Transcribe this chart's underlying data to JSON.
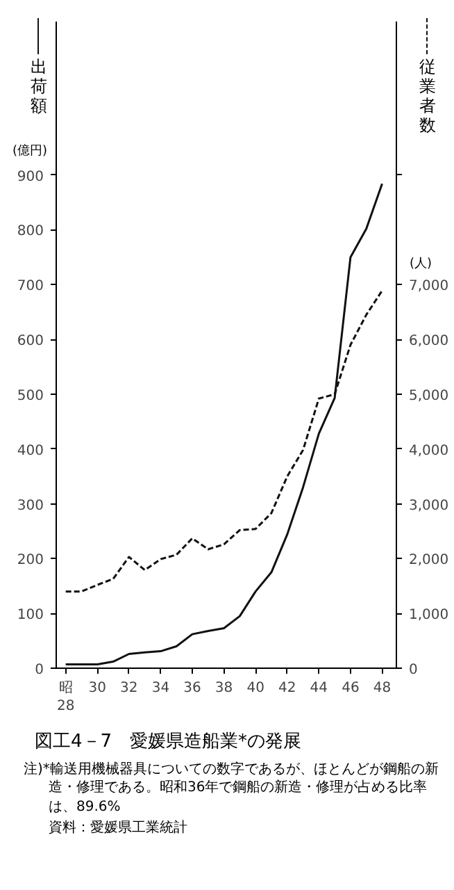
{
  "chart_data": {
    "type": "line",
    "title": "図工4－7　愛媛県造船業*の発展",
    "x": [
      28,
      29,
      30,
      31,
      32,
      33,
      34,
      35,
      36,
      37,
      38,
      39,
      40,
      41,
      42,
      43,
      44,
      45,
      46,
      47,
      48
    ],
    "series": [
      {
        "name": "出荷額",
        "color": "#111111",
        "line_style": "solid",
        "values": [
          7,
          7,
          7,
          12,
          26,
          29,
          31,
          40,
          62,
          68,
          73,
          95,
          140,
          175,
          244,
          330,
          428,
          493,
          750,
          802,
          884
        ]
      },
      {
        "name": "従業者数",
        "color": "#111111",
        "line_style": "dashed",
        "axis": "y2",
        "values": [
          1400,
          1400,
          1520,
          1630,
          2030,
          1790,
          1990,
          2070,
          2370,
          2170,
          2260,
          2520,
          2540,
          2830,
          3500,
          3980,
          4920,
          5000,
          5900,
          6450,
          6890
        ]
      }
    ],
    "ylabel": "(億円)",
    "y2label": "(人)",
    "xlim": [
      27.4,
      48.9
    ],
    "xticks": [
      {
        "value": 28,
        "label": "昭\n28"
      },
      30,
      32,
      34,
      36,
      38,
      40,
      42,
      44,
      46,
      48
    ],
    "ylim": [
      0,
      1180
    ],
    "yticks": [
      0,
      100,
      200,
      300,
      400,
      500,
      600,
      700,
      800,
      900
    ],
    "y2lim": [
      0,
      11800
    ],
    "y2ticks": [
      0,
      {
        "value": 1000,
        "label": "1,000"
      },
      {
        "value": 2000,
        "label": "2,000"
      },
      {
        "value": 3000,
        "label": "3,000"
      },
      {
        "value": 4000,
        "label": "4,000"
      },
      {
        "value": 5000,
        "label": "5,000"
      },
      {
        "value": 6000,
        "label": "6,000"
      },
      {
        "value": 7000,
        "label": "7,000"
      },
      {
        "value": 9000,
        "label": null
      }
    ],
    "grid": false,
    "legend": "top",
    "marker": "none",
    "annotations": [
      "注)*輸送用機械器具についての数字であるが、ほとんどが鋼船の新造・修理である。昭和36年で鋼船の新造・修理が占める比率は、89.6%",
      "資料：愛媛県工業統計"
    ]
  }
}
